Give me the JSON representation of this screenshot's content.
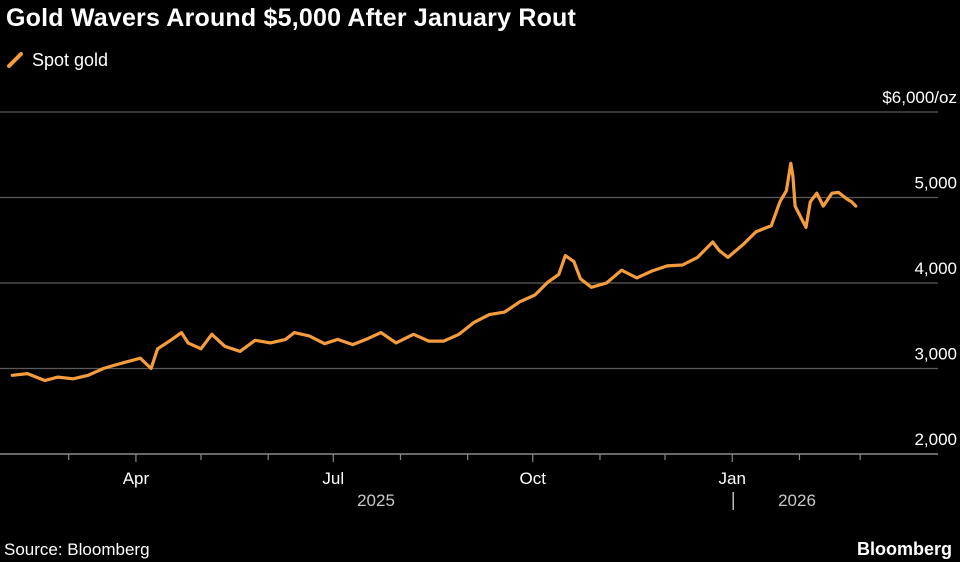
{
  "title": "Gold Wavers Around $5,000 After January Rout",
  "source": "Source: Bloomberg",
  "brand": "Bloomberg",
  "colors": {
    "series": "#f59d3d",
    "grid": "#5a5a5a",
    "axis": "#8a8a8a",
    "text": "#ffffff",
    "background": "#000000"
  },
  "chart_data": {
    "type": "line",
    "title": "Gold Wavers Around $5,000 After January Rout",
    "xlabel": "",
    "ylabel": "",
    "y_unit_label": "$6,000/oz",
    "ylim": [
      2000,
      6000
    ],
    "yticks": [
      2000,
      3000,
      4000,
      5000,
      6000
    ],
    "ytick_labels": [
      "2,000",
      "3,000",
      "4,000",
      "5,000",
      "$6,000/oz"
    ],
    "xlim": [
      "2025-02-01",
      "2026-03-31"
    ],
    "xticks": [
      {
        "date": "2025-04-01",
        "label": "Apr"
      },
      {
        "date": "2025-07-01",
        "label": "Jul"
      },
      {
        "date": "2025-10-01",
        "label": "Oct"
      },
      {
        "date": "2026-01-01",
        "label": "Jan"
      }
    ],
    "year_labels": [
      {
        "date": "2025-08-15",
        "label": "2025"
      },
      {
        "date": "2026-02-15",
        "label": "2026"
      }
    ],
    "year_divider": "2026-01-01",
    "grid": true,
    "legend": "top-left",
    "series": [
      {
        "name": "Spot gold",
        "x": [
          "2025-02-03",
          "2025-02-10",
          "2025-02-14",
          "2025-02-18",
          "2025-02-24",
          "2025-03-03",
          "2025-03-10",
          "2025-03-17",
          "2025-03-21",
          "2025-03-28",
          "2025-04-03",
          "2025-04-08",
          "2025-04-11",
          "2025-04-17",
          "2025-04-22",
          "2025-04-25",
          "2025-05-01",
          "2025-05-06",
          "2025-05-12",
          "2025-05-19",
          "2025-05-26",
          "2025-06-02",
          "2025-06-09",
          "2025-06-13",
          "2025-06-20",
          "2025-06-27",
          "2025-07-03",
          "2025-07-10",
          "2025-07-17",
          "2025-07-23",
          "2025-07-30",
          "2025-08-07",
          "2025-08-14",
          "2025-08-21",
          "2025-08-28",
          "2025-09-04",
          "2025-09-11",
          "2025-09-18",
          "2025-09-25",
          "2025-10-02",
          "2025-10-08",
          "2025-10-13",
          "2025-10-16",
          "2025-10-20",
          "2025-10-23",
          "2025-10-28",
          "2025-11-04",
          "2025-11-11",
          "2025-11-18",
          "2025-11-25",
          "2025-12-02",
          "2025-12-09",
          "2025-12-16",
          "2025-12-23",
          "2025-12-26",
          "2025-12-30",
          "2026-01-06",
          "2026-01-12",
          "2026-01-19",
          "2026-01-23",
          "2026-01-26",
          "2026-01-28",
          "2026-01-29",
          "2026-01-30",
          "2026-02-02",
          "2026-02-04",
          "2026-02-06",
          "2026-02-09",
          "2026-02-12",
          "2026-02-16",
          "2026-02-19",
          "2026-02-23",
          "2026-02-25",
          "2026-02-27"
        ],
        "values": [
          2920,
          2940,
          2900,
          2860,
          2900,
          2880,
          2920,
          3000,
          3030,
          3080,
          3120,
          3000,
          3230,
          3330,
          3420,
          3300,
          3230,
          3400,
          3260,
          3200,
          3330,
          3300,
          3340,
          3420,
          3380,
          3290,
          3340,
          3280,
          3350,
          3420,
          3300,
          3400,
          3320,
          3320,
          3400,
          3540,
          3630,
          3660,
          3780,
          3860,
          4010,
          4100,
          4320,
          4250,
          4050,
          3950,
          4000,
          4150,
          4060,
          4140,
          4200,
          4210,
          4300,
          4480,
          4380,
          4300,
          4450,
          4600,
          4670,
          4950,
          5080,
          5400,
          5250,
          4900,
          4750,
          4650,
          4950,
          5050,
          4900,
          5050,
          5060,
          4980,
          4950,
          4900
        ]
      }
    ]
  }
}
